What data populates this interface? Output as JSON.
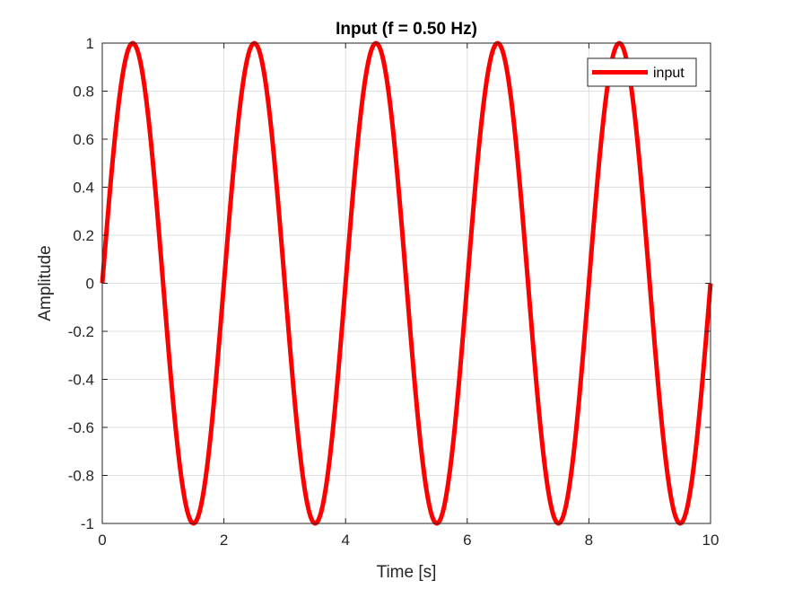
{
  "chart_data": {
    "type": "line",
    "title": "Input (f = 0.50 Hz)",
    "xlabel": "Time [s]",
    "ylabel": "Amplitude",
    "xlim": [
      0,
      10
    ],
    "ylim": [
      -1,
      1
    ],
    "x_ticks": [
      0,
      2,
      4,
      6,
      8,
      10
    ],
    "x_tick_labels": [
      "0",
      "2",
      "4",
      "6",
      "8",
      "10"
    ],
    "y_ticks": [
      -1,
      -0.8,
      -0.6,
      -0.4,
      -0.2,
      0,
      0.2,
      0.4,
      0.6,
      0.8,
      1
    ],
    "y_tick_labels": [
      "-1",
      "-0.8",
      "-0.6",
      "-0.4",
      "-0.2",
      "0",
      "0.2",
      "0.4",
      "0.6",
      "0.8",
      "1"
    ],
    "grid": true,
    "legend_position": "top-right",
    "series": [
      {
        "name": "input",
        "color": "#ff0000",
        "x": [
          0,
          0.25,
          0.5,
          0.75,
          1,
          1.25,
          1.5,
          1.75,
          2,
          2.25,
          2.5,
          2.75,
          3,
          3.25,
          3.5,
          3.75,
          4,
          4.25,
          4.5,
          4.75,
          5,
          5.25,
          5.5,
          5.75,
          6,
          6.25,
          6.5,
          6.75,
          7,
          7.25,
          7.5,
          7.75,
          8,
          8.25,
          8.5,
          8.75,
          9,
          9.25,
          9.5,
          9.75,
          10
        ],
        "y": [
          0,
          0.707,
          1,
          0.707,
          0,
          -0.707,
          -1,
          -0.707,
          0,
          0.707,
          1,
          0.707,
          0,
          -0.707,
          -1,
          -0.707,
          0,
          0.707,
          1,
          0.707,
          0,
          -0.707,
          -1,
          -0.707,
          0,
          0.707,
          1,
          0.707,
          0,
          -0.707,
          -1,
          -0.707,
          0,
          0.707,
          1,
          0.707,
          0,
          -0.707,
          -1,
          -0.707,
          0
        ]
      }
    ]
  }
}
